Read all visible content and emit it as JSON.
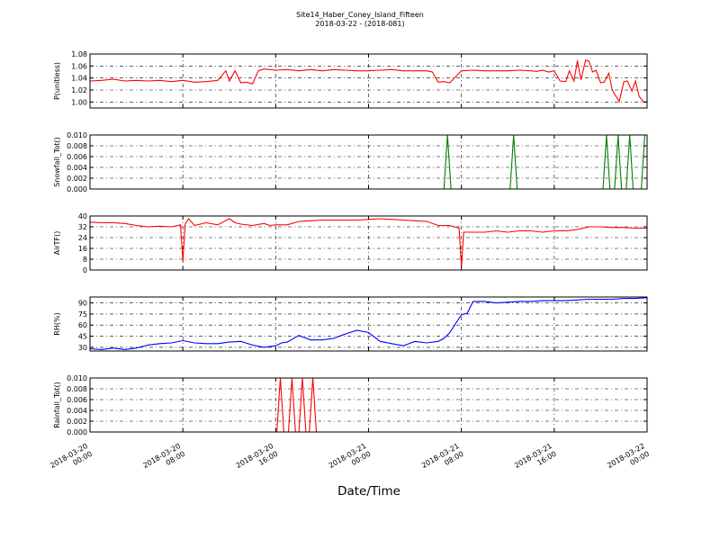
{
  "figure": {
    "title_line1": "Site14_Haber_Coney_Island_Fifteen",
    "title_line2": "2018-03-22 - (2018-081)",
    "xlabel": "Date/Time",
    "x_ticks": [
      {
        "t": 0,
        "line1": "2018-03-20",
        "line2": "00:00"
      },
      {
        "t": 8,
        "line1": "2018-03-20",
        "line2": "08:00"
      },
      {
        "t": 16,
        "line1": "2018-03-20",
        "line2": "16:00"
      },
      {
        "t": 24,
        "line1": "2018-03-21",
        "line2": "00:00"
      },
      {
        "t": 32,
        "line1": "2018-03-21",
        "line2": "08:00"
      },
      {
        "t": 40,
        "line1": "2018-03-21",
        "line2": "16:00"
      },
      {
        "t": 48,
        "line1": "2018-03-22",
        "line2": "00:00"
      }
    ]
  },
  "chart_data": [
    {
      "type": "line",
      "ylabel": "P(unitless)",
      "color": "#ff0000",
      "ylim": [
        0.99,
        1.08
      ],
      "yticks": [
        1.0,
        1.02,
        1.04,
        1.06,
        1.08
      ],
      "ytick_labels": [
        "1.00",
        "1.02",
        "1.04",
        "1.06",
        "1.08"
      ],
      "x_hours": [
        0,
        1,
        2,
        3,
        4,
        5,
        6,
        7,
        8,
        9,
        10,
        11,
        11.7,
        12,
        12.5,
        13,
        13.5,
        14,
        14.5,
        15,
        16,
        17,
        18,
        19,
        20,
        21,
        22,
        23,
        24,
        25,
        26,
        27,
        28,
        29,
        29.5,
        30,
        30.5,
        31,
        32,
        33,
        34,
        35,
        36,
        37,
        38,
        38.5,
        39,
        39.5,
        40,
        40.5,
        41,
        41.3,
        41.7,
        42,
        42.3,
        42.7,
        43,
        43.3,
        43.6,
        44,
        44.3,
        44.7,
        45,
        45.3,
        45.6,
        46,
        46.3,
        46.7,
        47,
        47.3,
        47.7,
        48
      ],
      "y": [
        1.035,
        1.036,
        1.038,
        1.035,
        1.036,
        1.035,
        1.036,
        1.034,
        1.036,
        1.033,
        1.034,
        1.036,
        1.052,
        1.035,
        1.052,
        1.032,
        1.033,
        1.03,
        1.052,
        1.055,
        1.053,
        1.054,
        1.052,
        1.054,
        1.052,
        1.054,
        1.053,
        1.052,
        1.052,
        1.053,
        1.054,
        1.052,
        1.052,
        1.052,
        1.05,
        1.033,
        1.034,
        1.032,
        1.052,
        1.053,
        1.052,
        1.052,
        1.052,
        1.053,
        1.052,
        1.051,
        1.053,
        1.05,
        1.052,
        1.035,
        1.034,
        1.052,
        1.035,
        1.069,
        1.037,
        1.07,
        1.068,
        1.05,
        1.053,
        1.032,
        1.033,
        1.048,
        1.02,
        1.01,
        1.001,
        1.034,
        1.035,
        1.018,
        1.035,
        1.01,
        1.0,
        1.0
      ]
    },
    {
      "type": "line",
      "ylabel": "Snowfall_Tot()",
      "color": "#007f00",
      "ylim": [
        0,
        0.01
      ],
      "yticks": [
        0,
        0.002,
        0.004,
        0.006,
        0.008,
        0.01
      ],
      "ytick_labels": [
        "0.000",
        "0.002",
        "0.004",
        "0.006",
        "0.008",
        "0.010"
      ],
      "x_hours": [
        0,
        30.5,
        30.8,
        31.1,
        36.2,
        36.5,
        36.8,
        44.2,
        44.5,
        44.8,
        45.2,
        45.5,
        45.8,
        46.2,
        46.5,
        46.8,
        47.5,
        47.8,
        48
      ],
      "y": [
        0,
        0,
        0.01,
        0,
        0,
        0.01,
        0,
        0,
        0.01,
        0,
        0,
        0.01,
        0,
        0,
        0.01,
        0,
        0,
        0.01,
        0.01
      ]
    },
    {
      "type": "line",
      "ylabel": "AirTF()",
      "color": "#ff0000",
      "ylim": [
        0,
        40
      ],
      "yticks": [
        0,
        8,
        16,
        24,
        32,
        40
      ],
      "ytick_labels": [
        "0",
        "8",
        "16",
        "24",
        "32",
        "40"
      ],
      "x_hours": [
        0,
        1,
        2,
        3,
        4,
        5,
        6,
        7,
        7.8,
        8,
        8.2,
        8.5,
        9,
        10,
        11,
        12,
        12.5,
        13,
        14,
        15,
        15.5,
        16,
        17,
        18,
        19,
        20,
        21,
        22,
        23,
        24,
        25,
        26,
        27,
        28,
        29,
        30,
        31,
        31.8,
        32,
        32.2,
        33,
        34,
        35,
        36,
        37,
        38,
        39,
        40,
        41,
        42,
        43,
        44,
        45,
        46,
        47,
        48
      ],
      "y": [
        35.5,
        35,
        35,
        34.5,
        33,
        32,
        32.5,
        32,
        33.5,
        6,
        34,
        38,
        33,
        35,
        33.5,
        38,
        35,
        34,
        33,
        34.5,
        33,
        33.5,
        33.5,
        36,
        36.5,
        37,
        37,
        37,
        37,
        37.5,
        38,
        37.5,
        37,
        36.5,
        36,
        33,
        33,
        31,
        2,
        28,
        28,
        28,
        29,
        28,
        29,
        29,
        28,
        29,
        29,
        30,
        32,
        32,
        31.5,
        31.5,
        31,
        31
      ]
    },
    {
      "type": "line",
      "ylabel": "RH(%)",
      "color": "#0000ff",
      "ylim": [
        25,
        98
      ],
      "yticks": [
        30,
        45,
        60,
        75,
        90
      ],
      "ytick_labels": [
        "30",
        "45",
        "60",
        "75",
        "90"
      ],
      "x_hours": [
        0,
        1,
        2,
        3,
        4,
        5,
        6,
        7,
        8,
        9,
        10,
        11,
        12,
        13,
        14,
        15,
        16,
        16.5,
        17,
        18,
        19,
        20,
        21,
        22,
        23,
        24,
        25,
        26,
        27,
        28,
        29,
        30,
        30.5,
        31,
        31.5,
        32,
        32.5,
        33,
        34,
        35,
        36,
        37,
        38,
        39,
        40,
        41,
        42,
        43,
        44,
        45,
        46,
        47,
        48
      ],
      "y": [
        28,
        27,
        29,
        27,
        29,
        33,
        35,
        36,
        39,
        36,
        35,
        35,
        37,
        38,
        33,
        30,
        32,
        36,
        37,
        46,
        40,
        40,
        42,
        48,
        53,
        50,
        38,
        35,
        32,
        38,
        36,
        38,
        42,
        50,
        62,
        74,
        76,
        92,
        92,
        90,
        91,
        92,
        92,
        93,
        93,
        93,
        94,
        95,
        95,
        95,
        96,
        96,
        97
      ]
    },
    {
      "type": "line",
      "ylabel": "Rainfall_Tot()",
      "color": "#ff0000",
      "ylim": [
        0,
        0.01
      ],
      "yticks": [
        0,
        0.002,
        0.004,
        0.006,
        0.008,
        0.01
      ],
      "ytick_labels": [
        "0.000",
        "0.002",
        "0.004",
        "0.006",
        "0.008",
        "0.010"
      ],
      "x_hours": [
        0,
        16.1,
        16.4,
        16.7,
        17.1,
        17.4,
        17.7,
        18,
        18.3,
        18.6,
        18.9,
        19.2,
        19.5,
        48
      ],
      "y": [
        0,
        0,
        0.01,
        0,
        0,
        0.01,
        0,
        0,
        0.01,
        0,
        0,
        0.01,
        0,
        0
      ]
    }
  ]
}
